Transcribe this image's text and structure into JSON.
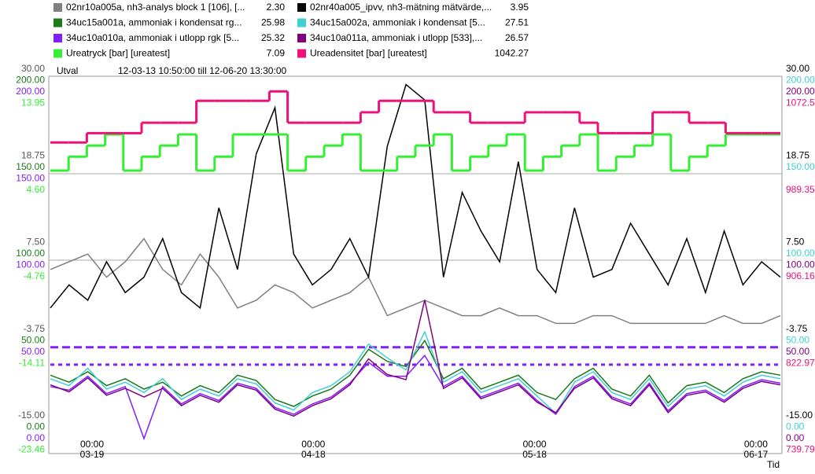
{
  "chart_data": {
    "type": "line",
    "header": {
      "selection": "Utval",
      "range": "12-03-13 10:50:00 till 12-06-20 13:30:00"
    },
    "x_label": "Tid",
    "xticks": [
      [
        "00:00",
        "03-19"
      ],
      [
        "00:00",
        "04-18"
      ],
      [
        "00:00",
        "05-18"
      ],
      [
        "00:00",
        "06-17"
      ]
    ],
    "series": [
      {
        "name": "02nr10a005a, nh3-analys block 1  [106], [...",
        "current": 2.3,
        "current_label": "2.30",
        "color": "#808080",
        "side": "left",
        "row": 0,
        "ylim": [
          -15,
          30
        ],
        "yticks": [
          {
            "value": 30,
            "label": "30.00"
          },
          {
            "value": 18.75,
            "label": "18.75"
          },
          {
            "value": 7.5,
            "label": "7.50"
          },
          {
            "value": -3.75,
            "label": "-3.75"
          },
          {
            "value": -15,
            "label": "-15.00"
          }
        ],
        "values": [
          4,
          5,
          6,
          3,
          5,
          8,
          4,
          2,
          6,
          3,
          -1,
          0,
          2,
          1,
          -1,
          0,
          1,
          3,
          -2,
          -1,
          0,
          -1,
          -2,
          -2,
          -1,
          -2,
          -2,
          -3,
          -3,
          -2,
          -2,
          -3,
          -3,
          -3,
          -3,
          -3,
          -2,
          -3,
          -3,
          -2
        ]
      },
      {
        "name": "02nr40a005_ipvv, nh3-mätning mätvärde,...",
        "current": 3.95,
        "current_label": "3.95",
        "color": "#000000",
        "side": "right",
        "row": 0,
        "ylim": [
          -15,
          30
        ],
        "yticks": [
          {
            "value": 30,
            "label": "30.00"
          },
          {
            "value": 18.75,
            "label": "18.75"
          },
          {
            "value": 7.5,
            "label": "7.50"
          },
          {
            "value": -3.75,
            "label": "-3.75"
          },
          {
            "value": -15,
            "label": "-15.00"
          }
        ],
        "values": [
          -1,
          2,
          0,
          5,
          1,
          3,
          8,
          1,
          -1,
          12,
          4,
          19,
          25,
          6,
          2,
          4,
          8,
          3,
          20,
          28,
          26,
          3,
          14,
          9,
          5,
          18,
          4,
          1,
          12,
          3,
          4,
          10,
          6,
          2,
          8,
          1,
          9,
          2,
          5,
          3
        ]
      },
      {
        "name": "34uc15a001a, ammoniak i kondensat rg...",
        "current": 25.98,
        "current_label": "25.98",
        "color": "#1a7a1a",
        "side": "left",
        "row": 1,
        "ylim": [
          0,
          200
        ],
        "yticks": [
          {
            "value": 200,
            "label": "200.00"
          },
          {
            "value": 150,
            "label": "150.00"
          },
          {
            "value": 100,
            "label": "100.00"
          },
          {
            "value": 50,
            "label": "50.00"
          },
          {
            "value": 0,
            "label": "0.00"
          }
        ],
        "values": [
          30,
          26,
          32,
          24,
          28,
          22,
          26,
          18,
          24,
          20,
          30,
          27,
          16,
          12,
          18,
          22,
          30,
          45,
          38,
          35,
          50,
          28,
          34,
          22,
          26,
          30,
          20,
          16,
          28,
          34,
          22,
          18,
          30,
          14,
          24,
          26,
          20,
          28,
          32,
          30
        ]
      },
      {
        "name": "34uc15a002a, ammoniak i kondensat  [5...",
        "current": 27.51,
        "current_label": "27.51",
        "color": "#40d0d0",
        "side": "right",
        "row": 1,
        "ylim": [
          0,
          200
        ],
        "yticks": [
          {
            "value": 200,
            "label": "200.00"
          },
          {
            "value": 150,
            "label": "150.00"
          },
          {
            "value": 100,
            "label": "100.00"
          },
          {
            "value": 50,
            "label": "50.00"
          },
          {
            "value": 0,
            "label": "0.00"
          }
        ],
        "values": [
          28,
          24,
          34,
          22,
          26,
          20,
          28,
          16,
          22,
          18,
          28,
          25,
          14,
          10,
          20,
          24,
          32,
          48,
          40,
          33,
          55,
          26,
          32,
          20,
          24,
          28,
          18,
          8,
          26,
          32,
          20,
          16,
          28,
          12,
          22,
          24,
          18,
          26,
          30,
          28
        ]
      },
      {
        "name": "34uc10a010a, ammoniak i utlopp rgk  [5...",
        "current": 25.32,
        "current_label": "25.32",
        "color": "#8020ff",
        "side": "left",
        "row": 2,
        "ylim": [
          0,
          200
        ],
        "yticks": [
          {
            "value": 200,
            "label": "200.00"
          },
          {
            "value": 150,
            "label": "150.00"
          },
          {
            "value": 100,
            "label": "100.00"
          },
          {
            "value": 50,
            "label": "50.00"
          },
          {
            "value": 0,
            "label": "0.00"
          }
        ],
        "values": [
          30,
          28,
          36,
          26,
          30,
          0,
          30,
          20,
          26,
          22,
          32,
          29,
          18,
          14,
          20,
          24,
          32,
          44,
          36,
          36,
          48,
          30,
          36,
          24,
          28,
          32,
          22,
          14,
          30,
          36,
          24,
          20,
          32,
          16,
          26,
          28,
          22,
          30,
          34,
          32
        ]
      },
      {
        "name": "34uc10a011a, ammoniak i utlopp  [533],...",
        "current": 26.57,
        "current_label": "26.57",
        "color": "#800080",
        "side": "right",
        "row": 2,
        "ylim": [
          0,
          200
        ],
        "yticks": [
          {
            "value": 200,
            "label": "200.00"
          },
          {
            "value": 100,
            "label": "100.00"
          },
          {
            "value": 50,
            "label": "50.00"
          },
          {
            "value": 0,
            "label": "0.00"
          }
        ],
        "values": [
          31,
          27,
          35,
          25,
          29,
          24,
          29,
          19,
          25,
          21,
          31,
          28,
          17,
          13,
          19,
          23,
          31,
          46,
          37,
          34,
          80,
          29,
          35,
          23,
          27,
          31,
          21,
          15,
          29,
          35,
          23,
          19,
          31,
          15,
          25,
          27,
          21,
          29,
          33,
          31
        ]
      },
      {
        "name": "Ureatryck [bar] [ureatest]",
        "current": 7.09,
        "current_label": "7.09",
        "color": "#33ee33",
        "side": "left",
        "row": 3,
        "step": true,
        "ylim": [
          -23.46,
          13.95
        ],
        "yticks": [
          {
            "value": 13.95,
            "label": "13.95"
          },
          {
            "value": 4.6,
            "label": "4.60"
          },
          {
            "value": -4.76,
            "label": "-4.76"
          },
          {
            "value": -14.11,
            "label": "-14.11"
          },
          {
            "value": -23.46,
            "label": "-23.46"
          }
        ],
        "values": [
          6.7,
          8.2,
          9.4,
          10.6,
          6.7,
          8.2,
          9.4,
          10.6,
          6.7,
          8.2,
          10.6,
          10.6,
          10.6,
          6.7,
          8.2,
          9.4,
          10.6,
          6.7,
          6.7,
          8.2,
          9.4,
          10.6,
          6.7,
          8.2,
          9.4,
          10.6,
          6.7,
          8.2,
          9.4,
          10.6,
          6.7,
          8.2,
          9.4,
          10.6,
          6.7,
          8.2,
          9.4,
          10.6,
          10.6,
          10.6
        ]
      },
      {
        "name": "Ureadensitet [bar] [ureatest]",
        "current": 1042.27,
        "current_label": "1042.27",
        "color": "#ee1177",
        "side": "right",
        "row": 3,
        "step": true,
        "ylim": [
          739.79,
          1072.54
        ],
        "yticks": [
          {
            "value": 1072.54,
            "label": "1072.54"
          },
          {
            "value": 989.35,
            "label": "989.35"
          },
          {
            "value": 906.16,
            "label": "906.16"
          },
          {
            "value": 822.97,
            "label": "822.97"
          },
          {
            "value": 739.79,
            "label": "739.79"
          }
        ],
        "values": [
          1035,
          1035,
          1044,
          1044,
          1044,
          1054,
          1054,
          1054,
          1075,
          1075,
          1075,
          1075,
          1084,
          1054,
          1054,
          1054,
          1054,
          1064,
          1075,
          1075,
          1075,
          1064,
          1064,
          1054,
          1054,
          1054,
          1064,
          1064,
          1064,
          1054,
          1044,
          1044,
          1044,
          1064,
          1064,
          1054,
          1054,
          1044,
          1044,
          1044
        ]
      }
    ],
    "reference_lines": [
      {
        "value": 52.7,
        "color": "#8020ff",
        "dash": "10 5"
      },
      {
        "value": 42.7,
        "color": "#8020ff",
        "dash": "5 5"
      }
    ]
  }
}
